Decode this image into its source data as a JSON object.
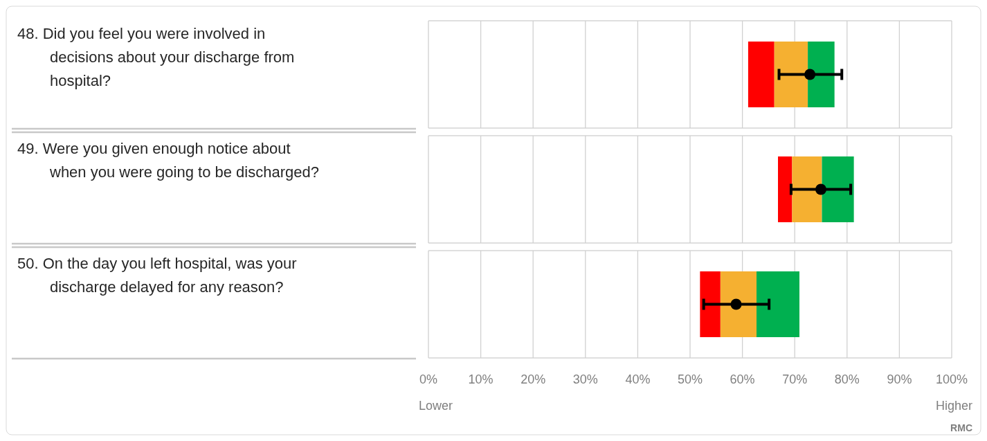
{
  "chart_data": {
    "type": "bar",
    "orientation": "horizontal",
    "categories": [
      "48. Did you feel you were involved in decisions about your discharge from hospital?",
      "49. Were you given enough notice about when you were going to be discharged?",
      "50. On the day you left hospital, was your discharge delayed for any reason?"
    ],
    "series": [
      {
        "color": "#ff0000",
        "base": [
          61.1,
          66.8,
          51.9
        ],
        "values": [
          5.0,
          2.7,
          3.9
        ]
      },
      {
        "color": "#f5b031",
        "base": [
          66.1,
          69.5,
          55.8
        ],
        "values": [
          6.4,
          5.7,
          6.9
        ]
      },
      {
        "color": "#00b050",
        "base": [
          72.5,
          75.2,
          62.7
        ],
        "values": [
          5.1,
          6.1,
          8.2
        ]
      },
      {
        "type": "scatter",
        "color": "#000000",
        "marker": "circle",
        "values": [
          72.9,
          75.0,
          58.8
        ],
        "errors": [
          [
            67.0,
            79.0
          ],
          [
            69.3,
            80.7
          ],
          [
            52.6,
            65.1
          ]
        ]
      }
    ],
    "xlim": [
      0,
      100
    ],
    "xticks": [
      {
        "value": 0,
        "label": "0%"
      },
      {
        "value": 10,
        "label": "10%"
      },
      {
        "value": 20,
        "label": "20%"
      },
      {
        "value": 30,
        "label": "30%"
      },
      {
        "value": 40,
        "label": "40%"
      },
      {
        "value": 50,
        "label": "50%"
      },
      {
        "value": 60,
        "label": "60%"
      },
      {
        "value": 70,
        "label": "70%"
      },
      {
        "value": 80,
        "label": "80%"
      },
      {
        "value": 90,
        "label": "90%"
      },
      {
        "value": 100,
        "label": "100%"
      }
    ],
    "grid": "x",
    "annotations": [
      "Lower",
      "Higher",
      "RMC"
    ]
  }
}
